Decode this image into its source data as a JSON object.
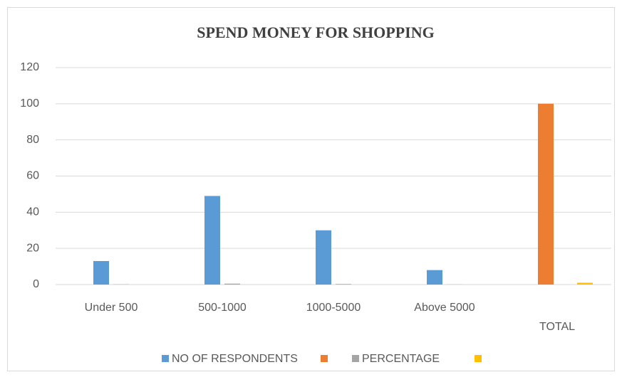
{
  "chart_data": {
    "type": "bar",
    "title": "SPEND MONEY FOR SHOPPING",
    "categories": [
      "Under 500",
      "500-1000",
      "1000-5000",
      "Above 5000",
      "TOTAL"
    ],
    "series": [
      {
        "name": "NO OF RESPONDENTS",
        "color": "#5b9bd5",
        "values": [
          13,
          49,
          30,
          8,
          null
        ]
      },
      {
        "color": "#ed7d31",
        "values": [
          null,
          null,
          null,
          null,
          100
        ]
      },
      {
        "name": "PERCENTAGE",
        "color": "#a5a5a5",
        "values": [
          0.13,
          0.49,
          0.3,
          0.08,
          null
        ]
      },
      {
        "color": "#ffc000",
        "values": [
          null,
          null,
          null,
          null,
          1
        ]
      }
    ],
    "ylim": [
      0,
      120
    ],
    "yticks": [
      0,
      20,
      40,
      60,
      80,
      100,
      120
    ],
    "grid": true,
    "legend": "bottom"
  }
}
